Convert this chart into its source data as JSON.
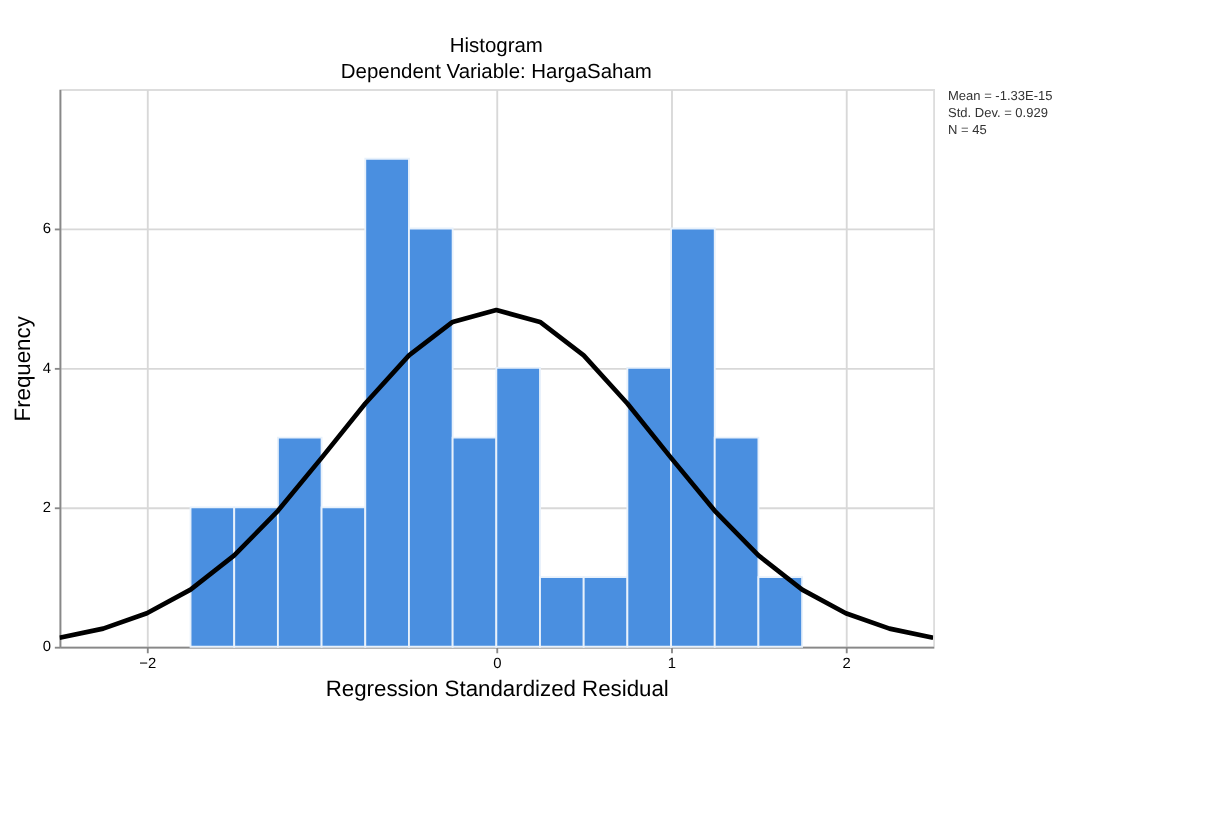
{
  "chart_data": {
    "type": "histogram",
    "title": "Histogram",
    "subtitle": "Dependent Variable: HargaSaham",
    "xlabel": "Regression Standardized Residual",
    "ylabel": "Frequency",
    "bins": [
      -1.75,
      -1.5,
      -1.25,
      -1.0,
      -0.75,
      -0.5,
      -0.25,
      0.0,
      0.25,
      0.5,
      0.75,
      1.0,
      1.25,
      1.5,
      1.75
    ],
    "values": [
      2,
      2,
      3,
      2,
      7,
      6,
      3,
      4,
      1,
      1,
      4,
      6,
      3,
      1
    ],
    "color": "#4a8fe0",
    "series": [
      {
        "type": "line",
        "color": "#000000",
        "x": [
          -2.5,
          -2.25,
          -2.0,
          -1.75,
          -1.5,
          -1.25,
          -1.0,
          -0.75,
          -0.5,
          -0.25,
          0.0,
          0.25,
          0.5,
          0.75,
          1.0,
          1.25,
          1.5,
          1.75,
          2.0,
          2.25,
          2.5
        ],
        "values": [
          0.13,
          0.26,
          0.48,
          0.82,
          1.31,
          1.95,
          2.71,
          3.49,
          4.18,
          4.66,
          4.83,
          4.66,
          4.18,
          3.49,
          2.71,
          1.95,
          1.31,
          0.82,
          0.48,
          0.26,
          0.13
        ]
      }
    ],
    "xlim": [
      -2.5,
      2.5
    ],
    "xticks": [
      -2,
      0,
      1,
      2
    ],
    "ylim": [
      0,
      8
    ],
    "yticks": [
      0,
      2,
      4,
      6
    ],
    "grid": true,
    "annotations": [
      "Mean = -1.33E-15",
      "Std. Dev. = 0.929",
      "N = 45"
    ]
  }
}
